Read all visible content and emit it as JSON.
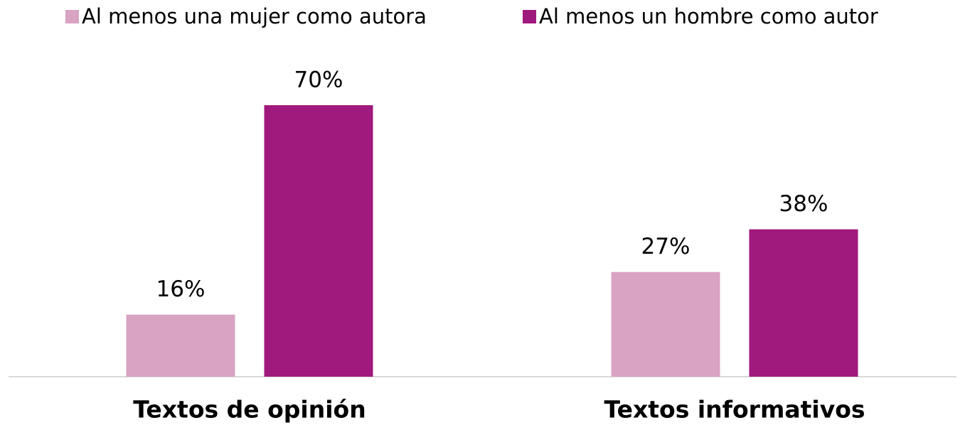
{
  "chart_data": {
    "type": "bar",
    "categories": [
      "Textos de opinión",
      "Textos informativos"
    ],
    "series": [
      {
        "name": "Al menos una mujer como autora",
        "color": "#d9a3c4",
        "values": [
          16,
          27
        ],
        "value_labels": [
          "16%",
          "27%"
        ]
      },
      {
        "name": "Al menos un hombre como autor",
        "color": "#a0197c",
        "values": [
          70,
          38
        ],
        "value_labels": [
          "70%",
          "38%"
        ]
      }
    ],
    "legend": "top"
  }
}
